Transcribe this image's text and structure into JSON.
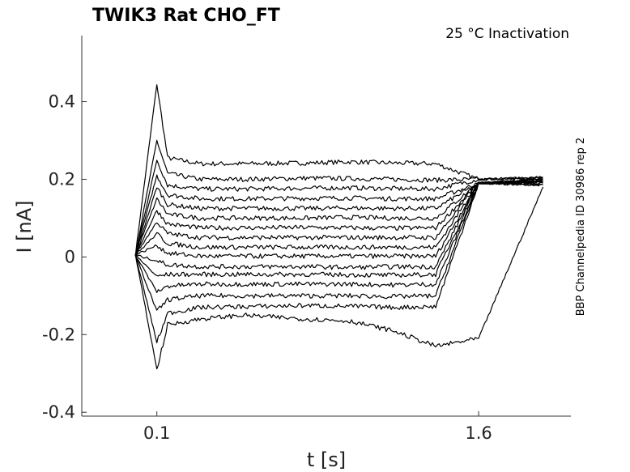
{
  "chart_data": {
    "type": "line",
    "title": "TWIK3  Rat  CHO_FT",
    "subtitle": "25 °C  Inactivation",
    "side_note": "BBP Channelpedia ID 30986 rep 2",
    "xlabel": "t [s]",
    "ylabel": "I [nA]",
    "x_ticks": [
      {
        "value": 0.1,
        "label": "0.1"
      },
      {
        "value": 1.6,
        "label": "1.6"
      }
    ],
    "y_ticks": [
      {
        "value": 0.4,
        "label": "0.4"
      },
      {
        "value": 0.2,
        "label": "0.2"
      },
      {
        "value": 0,
        "label": "0"
      },
      {
        "value": -0.2,
        "label": "-0.2"
      },
      {
        "value": -0.4,
        "label": "-0.4"
      }
    ],
    "xlim": [
      -0.25,
      2.03
    ],
    "ylim": [
      -0.41,
      0.57
    ],
    "grid": false,
    "legend": "none",
    "series": [
      {
        "values": [
          0.005,
          0.445,
          0.255,
          0.24,
          0.24,
          0.242,
          0.245,
          0.242,
          0.24,
          0.2,
          0.205
        ]
      },
      {
        "values": [
          0.005,
          0.3,
          0.215,
          0.2,
          0.2,
          0.203,
          0.202,
          0.2,
          0.198,
          0.2,
          0.205
        ]
      },
      {
        "values": [
          0.005,
          0.25,
          0.185,
          0.175,
          0.175,
          0.177,
          0.178,
          0.176,
          0.175,
          0.2,
          0.2
        ]
      },
      {
        "values": [
          0.005,
          0.21,
          0.16,
          0.15,
          0.15,
          0.151,
          0.152,
          0.15,
          0.15,
          0.19,
          0.2
        ]
      },
      {
        "values": [
          0.005,
          0.18,
          0.135,
          0.125,
          0.125,
          0.125,
          0.126,
          0.125,
          0.125,
          0.19,
          0.2
        ]
      },
      {
        "values": [
          0.005,
          0.15,
          0.11,
          0.1,
          0.1,
          0.1,
          0.102,
          0.1,
          0.1,
          0.19,
          0.2
        ]
      },
      {
        "values": [
          0.005,
          0.12,
          0.085,
          0.075,
          0.075,
          0.076,
          0.075,
          0.074,
          0.075,
          0.19,
          0.195
        ]
      },
      {
        "values": [
          0.005,
          0.09,
          0.06,
          0.05,
          0.05,
          0.05,
          0.05,
          0.05,
          0.05,
          0.19,
          0.195
        ]
      },
      {
        "values": [
          0.005,
          0.06,
          0.035,
          0.025,
          0.025,
          0.025,
          0.025,
          0.025,
          0.025,
          0.19,
          0.195
        ]
      },
      {
        "values": [
          0.005,
          0.03,
          0.01,
          0.002,
          0.002,
          0.002,
          0.002,
          0.002,
          0.002,
          0.19,
          0.195
        ]
      },
      {
        "values": [
          0.005,
          -0.01,
          -0.02,
          -0.025,
          -0.025,
          -0.025,
          -0.027,
          -0.025,
          -0.025,
          0.19,
          0.195
        ]
      },
      {
        "values": [
          0.005,
          -0.05,
          -0.045,
          -0.045,
          -0.045,
          -0.045,
          -0.046,
          -0.047,
          -0.045,
          0.19,
          0.19
        ]
      },
      {
        "values": [
          0.005,
          -0.09,
          -0.075,
          -0.07,
          -0.07,
          -0.07,
          -0.07,
          -0.072,
          -0.07,
          0.19,
          0.19
        ]
      },
      {
        "values": [
          0.005,
          -0.14,
          -0.11,
          -0.1,
          -0.1,
          -0.1,
          -0.1,
          -0.102,
          -0.1,
          0.19,
          0.185
        ]
      },
      {
        "values": [
          0.005,
          -0.22,
          -0.145,
          -0.13,
          -0.128,
          -0.125,
          -0.127,
          -0.13,
          -0.128,
          0.19,
          0.185
        ]
      },
      {
        "values": [
          0.005,
          -0.29,
          -0.175,
          -0.16,
          -0.15,
          -0.16,
          -0.165,
          -0.19,
          -0.23,
          -0.21,
          0.18
        ]
      }
    ],
    "x": [
      0.0,
      0.1,
      0.15,
      0.3,
      0.5,
      0.8,
      1.0,
      1.2,
      1.4,
      1.6,
      1.9
    ]
  }
}
